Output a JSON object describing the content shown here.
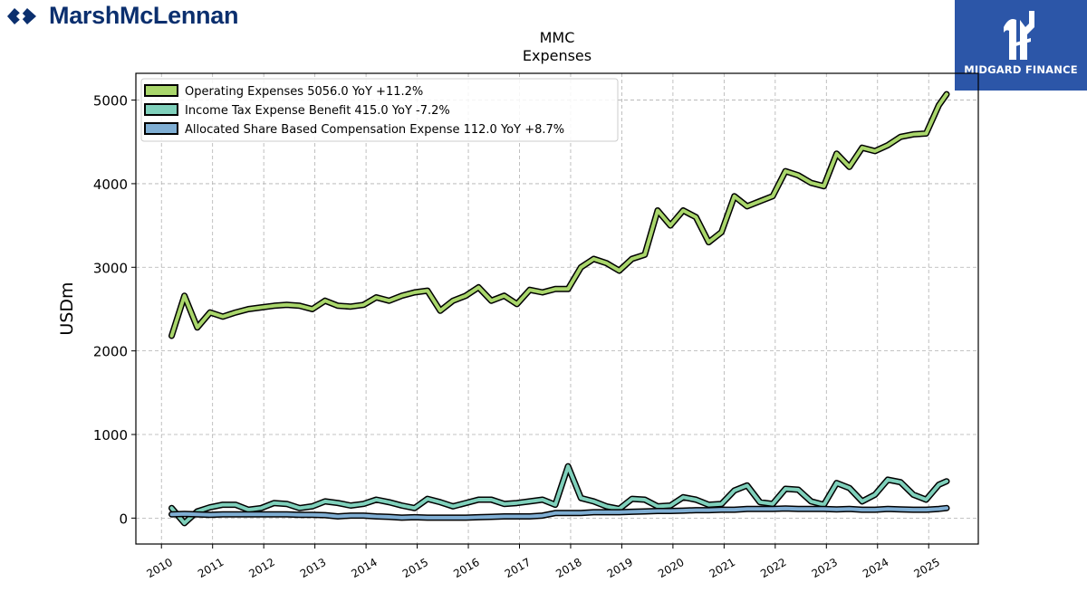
{
  "header": {
    "company_logo_text": "MarshMcLennan",
    "badge_text": "MIDGARD FINANCE"
  },
  "chart_data": {
    "type": "line",
    "title": "MMC",
    "subtitle": "Expenses",
    "xlabel": "",
    "ylabel": "USDm",
    "xlim": [
      2009.5,
      2025.97
    ],
    "ylim": [
      -310,
      5320
    ],
    "x_ticks": [
      2010,
      2011,
      2012,
      2013,
      2014,
      2015,
      2016,
      2017,
      2018,
      2019,
      2020,
      2021,
      2022,
      2023,
      2024,
      2025
    ],
    "x_tick_labels": [
      "2010",
      "2011",
      "2012",
      "2013",
      "2014",
      "2015",
      "2016",
      "2017",
      "2018",
      "2019",
      "2020",
      "2021",
      "2022",
      "2023",
      "2024",
      "2025"
    ],
    "y_ticks": [
      0,
      1000,
      2000,
      3000,
      4000,
      5000
    ],
    "y_tick_labels": [
      "0",
      "1000",
      "2000",
      "3000",
      "4000",
      "5000"
    ],
    "grid": true,
    "legend_position": "top-left",
    "series": [
      {
        "name": "Operating Expenses",
        "legend_label": "Operating Expenses  5056.0 YoY +11.2%",
        "color": "#a9d66b",
        "points": [
          [
            2010.2,
            2180
          ],
          [
            2010.45,
            2660
          ],
          [
            2010.7,
            2280
          ],
          [
            2010.95,
            2460
          ],
          [
            2011.2,
            2410
          ],
          [
            2011.45,
            2460
          ],
          [
            2011.7,
            2500
          ],
          [
            2011.95,
            2520
          ],
          [
            2012.2,
            2540
          ],
          [
            2012.45,
            2550
          ],
          [
            2012.7,
            2540
          ],
          [
            2012.95,
            2500
          ],
          [
            2013.2,
            2600
          ],
          [
            2013.45,
            2540
          ],
          [
            2013.7,
            2530
          ],
          [
            2013.95,
            2550
          ],
          [
            2014.2,
            2640
          ],
          [
            2014.45,
            2600
          ],
          [
            2014.7,
            2660
          ],
          [
            2014.95,
            2700
          ],
          [
            2015.2,
            2720
          ],
          [
            2015.45,
            2480
          ],
          [
            2015.7,
            2600
          ],
          [
            2015.95,
            2660
          ],
          [
            2016.2,
            2760
          ],
          [
            2016.45,
            2600
          ],
          [
            2016.7,
            2660
          ],
          [
            2016.95,
            2560
          ],
          [
            2017.2,
            2730
          ],
          [
            2017.45,
            2700
          ],
          [
            2017.7,
            2740
          ],
          [
            2017.95,
            2740
          ],
          [
            2018.2,
            3000
          ],
          [
            2018.45,
            3100
          ],
          [
            2018.7,
            3050
          ],
          [
            2018.95,
            2960
          ],
          [
            2019.2,
            3100
          ],
          [
            2019.45,
            3150
          ],
          [
            2019.7,
            3680
          ],
          [
            2019.95,
            3500
          ],
          [
            2020.2,
            3680
          ],
          [
            2020.45,
            3600
          ],
          [
            2020.7,
            3300
          ],
          [
            2020.95,
            3420
          ],
          [
            2021.2,
            3850
          ],
          [
            2021.45,
            3730
          ],
          [
            2021.7,
            3790
          ],
          [
            2021.95,
            3850
          ],
          [
            2022.2,
            4150
          ],
          [
            2022.45,
            4100
          ],
          [
            2022.7,
            4010
          ],
          [
            2022.95,
            3970
          ],
          [
            2023.2,
            4360
          ],
          [
            2023.45,
            4200
          ],
          [
            2023.7,
            4430
          ],
          [
            2023.95,
            4390
          ],
          [
            2024.2,
            4460
          ],
          [
            2024.45,
            4560
          ],
          [
            2024.7,
            4590
          ],
          [
            2024.95,
            4600
          ],
          [
            2025.2,
            4940
          ],
          [
            2025.35,
            5070
          ]
        ]
      },
      {
        "name": "Income Tax Expense Benefit",
        "legend_label": "Income Tax Expense Benefit  415.0 YoY -7.2%",
        "color": "#7fd0bb",
        "points": [
          [
            2010.2,
            120
          ],
          [
            2010.45,
            -60
          ],
          [
            2010.7,
            80
          ],
          [
            2010.95,
            130
          ],
          [
            2011.2,
            160
          ],
          [
            2011.45,
            160
          ],
          [
            2011.7,
            100
          ],
          [
            2011.95,
            120
          ],
          [
            2012.2,
            180
          ],
          [
            2012.45,
            170
          ],
          [
            2012.7,
            120
          ],
          [
            2012.95,
            140
          ],
          [
            2013.2,
            200
          ],
          [
            2013.45,
            180
          ],
          [
            2013.7,
            150
          ],
          [
            2013.95,
            170
          ],
          [
            2014.2,
            220
          ],
          [
            2014.45,
            190
          ],
          [
            2014.7,
            150
          ],
          [
            2014.95,
            120
          ],
          [
            2015.2,
            230
          ],
          [
            2015.45,
            190
          ],
          [
            2015.7,
            140
          ],
          [
            2015.95,
            180
          ],
          [
            2016.2,
            220
          ],
          [
            2016.45,
            220
          ],
          [
            2016.7,
            170
          ],
          [
            2016.95,
            180
          ],
          [
            2017.2,
            200
          ],
          [
            2017.45,
            220
          ],
          [
            2017.7,
            160
          ],
          [
            2017.95,
            620
          ],
          [
            2018.2,
            240
          ],
          [
            2018.45,
            200
          ],
          [
            2018.7,
            140
          ],
          [
            2018.95,
            110
          ],
          [
            2019.2,
            230
          ],
          [
            2019.45,
            220
          ],
          [
            2019.7,
            140
          ],
          [
            2019.95,
            150
          ],
          [
            2020.2,
            250
          ],
          [
            2020.45,
            220
          ],
          [
            2020.7,
            160
          ],
          [
            2020.95,
            170
          ],
          [
            2021.2,
            330
          ],
          [
            2021.45,
            390
          ],
          [
            2021.7,
            190
          ],
          [
            2021.95,
            170
          ],
          [
            2022.2,
            350
          ],
          [
            2022.45,
            340
          ],
          [
            2022.7,
            200
          ],
          [
            2022.95,
            160
          ],
          [
            2023.2,
            420
          ],
          [
            2023.45,
            360
          ],
          [
            2023.7,
            200
          ],
          [
            2023.95,
            280
          ],
          [
            2024.2,
            460
          ],
          [
            2024.45,
            430
          ],
          [
            2024.7,
            280
          ],
          [
            2024.95,
            220
          ],
          [
            2025.2,
            400
          ],
          [
            2025.35,
            440
          ]
        ]
      },
      {
        "name": "Allocated Share Based Compensation Expense",
        "legend_label": "Allocated Share Based Compensation Expense  112.0 YoY +8.7%",
        "color": "#7faed3",
        "points": [
          [
            2010.2,
            45
          ],
          [
            2010.45,
            50
          ],
          [
            2010.7,
            45
          ],
          [
            2010.95,
            40
          ],
          [
            2011.2,
            45
          ],
          [
            2011.45,
            45
          ],
          [
            2011.7,
            45
          ],
          [
            2011.95,
            45
          ],
          [
            2012.2,
            45
          ],
          [
            2012.45,
            45
          ],
          [
            2012.7,
            40
          ],
          [
            2012.95,
            40
          ],
          [
            2013.2,
            35
          ],
          [
            2013.45,
            20
          ],
          [
            2013.7,
            30
          ],
          [
            2013.95,
            30
          ],
          [
            2014.2,
            20
          ],
          [
            2014.45,
            15
          ],
          [
            2014.7,
            5
          ],
          [
            2014.95,
            10
          ],
          [
            2015.2,
            5
          ],
          [
            2015.45,
            5
          ],
          [
            2015.7,
            5
          ],
          [
            2015.95,
            5
          ],
          [
            2016.2,
            10
          ],
          [
            2016.45,
            15
          ],
          [
            2016.7,
            20
          ],
          [
            2016.95,
            20
          ],
          [
            2017.2,
            20
          ],
          [
            2017.45,
            30
          ],
          [
            2017.7,
            60
          ],
          [
            2017.95,
            60
          ],
          [
            2018.2,
            60
          ],
          [
            2018.45,
            70
          ],
          [
            2018.7,
            70
          ],
          [
            2018.95,
            70
          ],
          [
            2019.2,
            75
          ],
          [
            2019.45,
            80
          ],
          [
            2019.7,
            85
          ],
          [
            2019.95,
            85
          ],
          [
            2020.2,
            90
          ],
          [
            2020.45,
            95
          ],
          [
            2020.7,
            95
          ],
          [
            2020.95,
            100
          ],
          [
            2021.2,
            100
          ],
          [
            2021.45,
            110
          ],
          [
            2021.7,
            110
          ],
          [
            2021.95,
            110
          ],
          [
            2022.2,
            115
          ],
          [
            2022.45,
            110
          ],
          [
            2022.7,
            110
          ],
          [
            2022.95,
            110
          ],
          [
            2023.2,
            105
          ],
          [
            2023.45,
            110
          ],
          [
            2023.7,
            100
          ],
          [
            2023.95,
            100
          ],
          [
            2024.2,
            110
          ],
          [
            2024.45,
            105
          ],
          [
            2024.7,
            100
          ],
          [
            2024.95,
            100
          ],
          [
            2025.2,
            110
          ],
          [
            2025.35,
            120
          ]
        ]
      }
    ]
  }
}
